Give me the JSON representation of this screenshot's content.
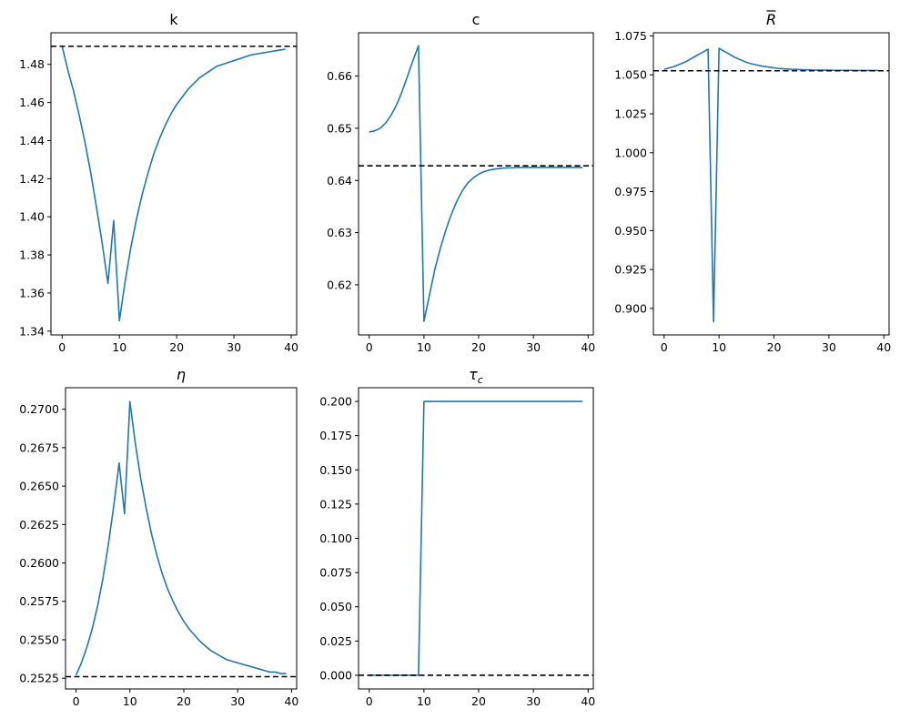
{
  "chart_data": [
    {
      "type": "line",
      "title": "k",
      "x_ticks": [
        0,
        10,
        20,
        30,
        40
      ],
      "y_ticks": [
        1.34,
        1.36,
        1.38,
        1.4,
        1.42,
        1.44,
        1.46,
        1.48
      ],
      "y_tick_decimals": 2,
      "xlim": [
        -1.95,
        40.95
      ],
      "ylim": [
        1.338,
        1.4966
      ],
      "steady_state": 1.4895,
      "series": [
        {
          "x": [
            0,
            1,
            2,
            3,
            4,
            5,
            6,
            7,
            8,
            9,
            10,
            11,
            12,
            13,
            14,
            15,
            16,
            17,
            18,
            19,
            20,
            21,
            22,
            23,
            24,
            25,
            26,
            27,
            28,
            29,
            30,
            31,
            32,
            33,
            34,
            35,
            36,
            37,
            38,
            39
          ],
          "values": [
            1.4895,
            1.477,
            1.466,
            1.453,
            1.439,
            1.423,
            1.405,
            1.386,
            1.365,
            1.398,
            1.3455,
            1.366,
            1.384,
            1.399,
            1.412,
            1.423,
            1.433,
            1.441,
            1.448,
            1.454,
            1.459,
            1.463,
            1.467,
            1.47,
            1.473,
            1.475,
            1.477,
            1.479,
            1.48,
            1.481,
            1.482,
            1.483,
            1.484,
            1.485,
            1.4855,
            1.486,
            1.4865,
            1.487,
            1.4875,
            1.488
          ]
        }
      ]
    },
    {
      "type": "line",
      "title": "c",
      "x_ticks": [
        0,
        10,
        20,
        30,
        40
      ],
      "y_ticks": [
        0.62,
        0.63,
        0.64,
        0.65,
        0.66
      ],
      "y_tick_decimals": 2,
      "xlim": [
        -1.95,
        40.95
      ],
      "ylim": [
        0.6104,
        0.6683
      ],
      "steady_state": 0.6428,
      "series": [
        {
          "x": [
            0,
            1,
            2,
            3,
            4,
            5,
            6,
            7,
            8,
            9,
            10,
            11,
            12,
            13,
            14,
            15,
            16,
            17,
            18,
            19,
            20,
            21,
            22,
            23,
            24,
            25,
            26,
            27,
            28,
            29,
            30,
            31,
            32,
            33,
            34,
            35,
            36,
            37,
            38,
            39
          ],
          "values": [
            0.6493,
            0.6495,
            0.65,
            0.651,
            0.6525,
            0.6545,
            0.657,
            0.66,
            0.663,
            0.6658,
            0.613,
            0.618,
            0.623,
            0.627,
            0.6305,
            0.6335,
            0.636,
            0.638,
            0.6395,
            0.6405,
            0.6412,
            0.6417,
            0.642,
            0.6422,
            0.6423,
            0.6424,
            0.6424,
            0.6425,
            0.6425,
            0.6425,
            0.6425,
            0.6425,
            0.6425,
            0.6425,
            0.6425,
            0.6425,
            0.6425,
            0.6425,
            0.6425,
            0.6425
          ]
        }
      ]
    },
    {
      "type": "line",
      "title": "R̄",
      "x_ticks": [
        0,
        10,
        20,
        30,
        40
      ],
      "y_ticks": [
        0.9,
        0.925,
        0.95,
        0.975,
        1.0,
        1.025,
        1.05,
        1.075
      ],
      "y_tick_decimals": 3,
      "xlim": [
        -1.95,
        40.95
      ],
      "ylim": [
        0.883,
        1.077
      ],
      "steady_state": 1.0526,
      "series": [
        {
          "x": [
            0,
            1,
            2,
            3,
            4,
            5,
            6,
            7,
            8,
            9,
            10,
            11,
            12,
            13,
            14,
            15,
            16,
            17,
            18,
            19,
            20,
            21,
            22,
            23,
            24,
            25,
            26,
            27,
            28,
            29,
            30,
            31,
            32,
            33,
            34,
            35,
            36,
            37,
            38,
            39
          ],
          "values": [
            1.0535,
            1.0545,
            1.0555,
            1.057,
            1.0585,
            1.0605,
            1.0625,
            1.0645,
            1.0665,
            0.8915,
            1.067,
            1.065,
            1.063,
            1.061,
            1.0595,
            1.058,
            1.057,
            1.0562,
            1.0555,
            1.055,
            1.0545,
            1.054,
            1.0538,
            1.0536,
            1.0535,
            1.0533,
            1.0532,
            1.0531,
            1.053,
            1.053,
            1.053,
            1.0529,
            1.0529,
            1.0529,
            1.0529,
            1.0528,
            1.0528,
            1.0528,
            1.0528,
            1.0528
          ]
        }
      ]
    },
    {
      "type": "line",
      "title": "η",
      "x_ticks": [
        0,
        10,
        20,
        30,
        40
      ],
      "y_ticks": [
        0.2525,
        0.255,
        0.2575,
        0.26,
        0.2625,
        0.265,
        0.2675,
        0.27
      ],
      "y_tick_decimals": 4,
      "xlim": [
        -1.95,
        40.95
      ],
      "ylim": [
        0.2518,
        0.2714
      ],
      "steady_state": 0.2526,
      "series": [
        {
          "x": [
            0,
            1,
            2,
            3,
            4,
            5,
            6,
            7,
            8,
            9,
            10,
            11,
            12,
            13,
            14,
            15,
            16,
            17,
            18,
            19,
            20,
            21,
            22,
            23,
            24,
            25,
            26,
            27,
            28,
            29,
            30,
            31,
            32,
            33,
            34,
            35,
            36,
            37,
            38,
            39
          ],
          "values": [
            0.2527,
            0.2535,
            0.2545,
            0.2557,
            0.2572,
            0.259,
            0.2612,
            0.2637,
            0.2665,
            0.2632,
            0.2705,
            0.2678,
            0.2655,
            0.2636,
            0.2619,
            0.2605,
            0.2593,
            0.2583,
            0.2575,
            0.2568,
            0.2562,
            0.2557,
            0.2553,
            0.2549,
            0.2546,
            0.2543,
            0.2541,
            0.2539,
            0.2537,
            0.2536,
            0.2535,
            0.2534,
            0.2533,
            0.2532,
            0.2531,
            0.253,
            0.2529,
            0.2529,
            0.2528,
            0.2528
          ]
        }
      ]
    },
    {
      "type": "line",
      "title": "τ_c",
      "x_ticks": [
        0,
        10,
        20,
        30,
        40
      ],
      "y_ticks": [
        0.0,
        0.025,
        0.05,
        0.075,
        0.1,
        0.125,
        0.15,
        0.175,
        0.2
      ],
      "y_tick_decimals": 3,
      "xlim": [
        -1.95,
        40.95
      ],
      "ylim": [
        -0.01,
        0.21
      ],
      "steady_state": 0.0,
      "series": [
        {
          "x": [
            0,
            1,
            2,
            3,
            4,
            5,
            6,
            7,
            8,
            9,
            10,
            11,
            12,
            13,
            14,
            15,
            16,
            17,
            18,
            19,
            20,
            21,
            22,
            23,
            24,
            25,
            26,
            27,
            28,
            29,
            30,
            31,
            32,
            33,
            34,
            35,
            36,
            37,
            38,
            39
          ],
          "values": [
            0,
            0,
            0,
            0,
            0,
            0,
            0,
            0,
            0,
            0,
            0.2,
            0.2,
            0.2,
            0.2,
            0.2,
            0.2,
            0.2,
            0.2,
            0.2,
            0.2,
            0.2,
            0.2,
            0.2,
            0.2,
            0.2,
            0.2,
            0.2,
            0.2,
            0.2,
            0.2,
            0.2,
            0.2,
            0.2,
            0.2,
            0.2,
            0.2,
            0.2,
            0.2,
            0.2,
            0.2
          ]
        }
      ]
    }
  ],
  "colors": {
    "line": "#1f77b4",
    "steady_state": "#000000",
    "axes": "#000000"
  }
}
